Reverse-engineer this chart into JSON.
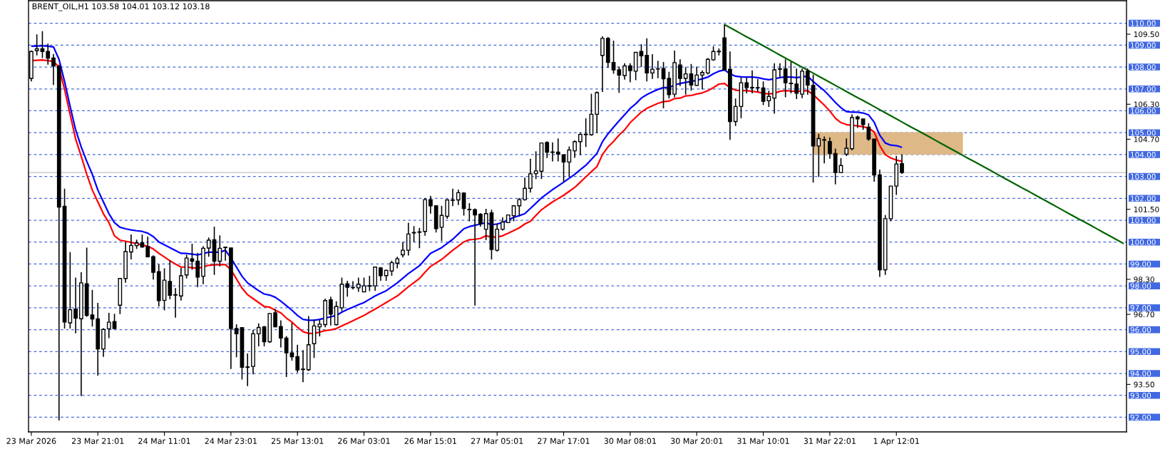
{
  "chart_data": {
    "type": "candlestick",
    "title": "BRENT_OIL,H1 103.58 104.01 103.12 103.18",
    "categories": [
      "23 Mar 2026",
      null,
      null,
      null,
      null,
      null,
      null,
      null,
      null,
      null,
      null,
      null,
      "23 Mar 21:01",
      null,
      null,
      null,
      null,
      null,
      null,
      null,
      null,
      null,
      null,
      null,
      "24 Mar 11:01",
      null,
      null,
      null,
      null,
      null,
      null,
      null,
      null,
      null,
      null,
      null,
      "24 Mar 23:01",
      null,
      null,
      null,
      null,
      null,
      null,
      null,
      null,
      null,
      null,
      null,
      "25 Mar 13:01",
      null,
      null,
      null,
      null,
      null,
      null,
      null,
      null,
      null,
      null,
      null,
      "26 Mar 03:01",
      null,
      null,
      null,
      null,
      null,
      null,
      null,
      null,
      null,
      null,
      null,
      "26 Mar 15:01",
      null,
      null,
      null,
      null,
      null,
      null,
      null,
      null,
      null,
      null,
      null,
      "27 Mar 05:01",
      null,
      null,
      null,
      null,
      null,
      null,
      null,
      null,
      null,
      null,
      null,
      "27 Mar 17:01",
      null,
      null,
      null,
      null,
      null,
      null,
      null,
      null,
      null,
      null,
      null,
      "30 Mar 08:01",
      null,
      null,
      null,
      null,
      null,
      null,
      null,
      null,
      null,
      null,
      null,
      "30 Mar 20:01",
      null,
      null,
      null,
      null,
      null,
      null,
      null,
      null,
      null,
      null,
      null,
      "31 Mar 10:01",
      null,
      null,
      null,
      null,
      null,
      null,
      null,
      null,
      null,
      null,
      null,
      "31 Mar 22:01",
      null,
      null,
      null,
      null,
      null,
      null,
      null,
      null,
      null,
      null,
      null,
      "1 Apr 12:01",
      null,
      null,
      null,
      null,
      null,
      null,
      null,
      null,
      null,
      null,
      null,
      null,
      null,
      null,
      null,
      null,
      null,
      null,
      null,
      null,
      null,
      null,
      null,
      null,
      null,
      null,
      null,
      null,
      null,
      null,
      null,
      null,
      null,
      null,
      null,
      null,
      null,
      null,
      null,
      null,
      null
    ],
    "ohlc": [
      [
        107.48,
        108.75,
        107.34,
        108.71
      ],
      [
        108.75,
        109.49,
        108.53,
        108.83
      ],
      [
        108.83,
        109.64,
        108.41,
        108.71
      ],
      [
        108.71,
        109.07,
        108.11,
        108.41
      ],
      [
        108.41,
        108.6,
        107.18,
        108.05
      ],
      [
        108.03,
        108.11,
        91.85,
        101.6
      ],
      [
        101.64,
        102.44,
        96.05,
        96.35
      ],
      [
        96.31,
        99.54,
        96.05,
        96.91
      ],
      [
        96.94,
        98.38,
        95.83,
        96.53
      ],
      [
        96.5,
        98.62,
        92.97,
        98.14
      ],
      [
        98.1,
        99.75,
        96.59,
        96.65
      ],
      [
        96.67,
        97.82,
        96.14,
        96.49
      ],
      [
        96.49,
        97.22,
        93.9,
        95.12
      ],
      [
        95.12,
        96.07,
        94.76,
        96.01
      ],
      [
        96.04,
        96.77,
        95.61,
        96.34
      ],
      [
        96.37,
        96.73,
        96.03,
        96.05
      ],
      [
        97.12,
        98.36,
        96.71,
        98.34
      ],
      [
        98.34,
        100.01,
        98.14,
        99.57
      ],
      [
        99.55,
        100.35,
        99.21,
        99.85
      ],
      [
        99.84,
        100.11,
        99.69,
        99.96
      ],
      [
        99.97,
        100.35,
        99.75,
        99.78
      ],
      [
        99.81,
        100.25,
        99.3,
        99.33
      ],
      [
        99.33,
        99.4,
        98.29,
        98.62
      ],
      [
        98.65,
        98.98,
        97.06,
        97.33
      ],
      [
        97.34,
        98.8,
        96.88,
        98.26
      ],
      [
        98.2,
        99.18,
        97.39,
        97.57
      ],
      [
        97.6,
        97.9,
        96.55,
        97.58
      ],
      [
        97.54,
        98.82,
        97.33,
        98.46
      ],
      [
        98.5,
        99.42,
        98.34,
        99.27
      ],
      [
        99.24,
        99.93,
        98.74,
        99.13
      ],
      [
        99.13,
        99.51,
        97.94,
        98.4
      ],
      [
        98.44,
        99.81,
        98.08,
        99.72
      ],
      [
        99.73,
        100.21,
        99.33,
        100.09
      ],
      [
        100.11,
        100.71,
        98.5,
        99.13
      ],
      [
        99.13,
        100.31,
        98.89,
        99.72
      ],
      [
        99.75,
        99.79,
        99.15,
        99.77
      ],
      [
        99.73,
        99.75,
        94.2,
        96.05
      ],
      [
        96.05,
        96.25,
        94.74,
        95.81
      ],
      [
        96.09,
        96.11,
        93.72,
        94.28
      ],
      [
        94.3,
        94.91,
        93.42,
        94.28
      ],
      [
        94.32,
        95.99,
        93.96,
        95.81
      ],
      [
        95.81,
        96.29,
        95.24,
        96.1
      ],
      [
        96.13,
        96.17,
        95.24,
        95.45
      ],
      [
        95.45,
        96.77,
        95.39,
        96.74
      ],
      [
        96.77,
        96.94,
        96.11,
        96.13
      ],
      [
        96.14,
        96.43,
        95.19,
        95.62
      ],
      [
        95.61,
        95.71,
        93.84,
        94.94
      ],
      [
        94.94,
        96.31,
        94.59,
        94.76
      ],
      [
        94.77,
        95.31,
        94.04,
        94.16
      ],
      [
        94.18,
        95.07,
        93.6,
        94.2
      ],
      [
        94.17,
        96.62,
        94.11,
        95.31
      ],
      [
        95.36,
        96.47,
        94.71,
        96.17
      ],
      [
        96.13,
        96.47,
        95.69,
        96.25
      ],
      [
        96.23,
        97.42,
        96.11,
        97.33
      ],
      [
        97.36,
        97.51,
        96.19,
        96.71
      ],
      [
        96.23,
        97.3,
        96.19,
        97.06
      ],
      [
        97.0,
        98.38,
        96.85,
        98.08
      ],
      [
        98.1,
        98.23,
        97.51,
        97.94
      ],
      [
        97.93,
        98.22,
        97.84,
        97.92
      ],
      [
        97.91,
        98.38,
        97.73,
        98.08
      ],
      [
        97.73,
        98.38,
        97.71,
        98.0
      ],
      [
        97.99,
        98.46,
        97.76,
        98.01
      ],
      [
        98.0,
        98.86,
        97.78,
        98.86
      ],
      [
        98.82,
        98.86,
        98.23,
        98.47
      ],
      [
        98.47,
        98.75,
        98.23,
        98.71
      ],
      [
        98.68,
        99.15,
        98.46,
        99.06
      ],
      [
        99.04,
        99.33,
        98.8,
        99.24
      ],
      [
        99.42,
        100.01,
        99.3,
        99.63
      ],
      [
        99.63,
        100.89,
        99.39,
        100.37
      ],
      [
        100.42,
        100.73,
        99.99,
        100.44
      ],
      [
        100.45,
        100.65,
        99.72,
        100.47
      ],
      [
        100.49,
        102.02,
        100.29,
        101.94
      ],
      [
        101.94,
        102.12,
        101.3,
        101.66
      ],
      [
        101.66,
        101.66,
        100.44,
        100.62
      ],
      [
        100.68,
        101.66,
        100.05,
        101.22
      ],
      [
        101.18,
        101.96,
        101.07,
        101.93
      ],
      [
        101.91,
        102.44,
        101.64,
        101.93
      ],
      [
        101.93,
        102.4,
        101.69,
        102.26
      ],
      [
        102.24,
        102.28,
        101.21,
        101.54
      ],
      [
        101.5,
        101.78,
        100.95,
        101.48
      ],
      [
        101.48,
        101.54,
        97.1,
        101.24
      ],
      [
        101.27,
        101.33,
        100.71,
        100.83
      ],
      [
        100.59,
        101.52,
        100.09,
        101.3
      ],
      [
        101.34,
        101.48,
        99.21,
        99.66
      ],
      [
        99.63,
        100.83,
        99.57,
        100.59
      ],
      [
        100.59,
        101.13,
        100.53,
        100.92
      ],
      [
        100.89,
        101.24,
        100.89,
        101.24
      ],
      [
        101.21,
        101.69,
        100.95,
        101.66
      ],
      [
        101.66,
        102.02,
        101.18,
        101.94
      ],
      [
        101.94,
        102.95,
        101.9,
        102.46
      ],
      [
        102.46,
        103.81,
        102.26,
        103.12
      ],
      [
        103.13,
        104.15,
        102.88,
        103.25
      ],
      [
        103.24,
        104.53,
        102.88,
        104.53
      ],
      [
        104.55,
        104.61,
        103.84,
        104.11
      ],
      [
        104.12,
        104.56,
        103.69,
        104.1
      ],
      [
        104.11,
        104.74,
        103.69,
        104.03
      ],
      [
        103.99,
        103.99,
        102.76,
        103.66
      ],
      [
        103.66,
        104.37,
        102.98,
        104.21
      ],
      [
        104.17,
        104.65,
        103.85,
        104.59
      ],
      [
        104.59,
        105.01,
        103.97,
        104.92
      ],
      [
        104.91,
        105.66,
        104.35,
        104.93
      ],
      [
        104.91,
        106.78,
        104.86,
        105.84
      ],
      [
        105.84,
        106.89,
        104.98,
        106.83
      ],
      [
        108.53,
        109.4,
        106.86,
        109.31
      ],
      [
        109.31,
        109.37,
        107.96,
        108.21
      ],
      [
        108.21,
        109.21,
        107.69,
        107.87
      ],
      [
        107.87,
        108.02,
        106.82,
        107.63
      ],
      [
        107.61,
        108.17,
        107.42,
        108.05
      ],
      [
        108.05,
        108.17,
        107.3,
        107.84
      ],
      [
        107.81,
        108.67,
        107.4,
        108.67
      ],
      [
        108.71,
        109.04,
        108.0,
        108.51
      ],
      [
        108.53,
        109.31,
        107.34,
        107.73
      ],
      [
        107.73,
        108.59,
        107.46,
        107.9
      ],
      [
        107.91,
        108.29,
        107.49,
        107.92
      ],
      [
        107.93,
        108.23,
        106.11,
        107.46
      ],
      [
        107.48,
        107.78,
        106.56,
        106.74
      ],
      [
        106.76,
        108.75,
        106.62,
        108.2
      ],
      [
        108.09,
        108.35,
        107.13,
        107.48
      ],
      [
        107.48,
        107.99,
        106.74,
        107.69
      ],
      [
        107.69,
        108.14,
        106.92,
        107.18
      ],
      [
        107.16,
        108.02,
        107.13,
        107.63
      ],
      [
        107.63,
        107.85,
        106.98,
        107.75
      ],
      [
        107.73,
        108.41,
        107.66,
        108.35
      ],
      [
        108.33,
        108.95,
        108.29,
        108.71
      ],
      [
        108.7,
        108.85,
        108.53,
        108.72
      ],
      [
        109.33,
        109.95,
        107.84,
        107.87
      ],
      [
        107.9,
        108.71,
        104.67,
        105.51
      ],
      [
        105.51,
        106.56,
        105.31,
        106.2
      ],
      [
        106.2,
        107.52,
        105.66,
        107.28
      ],
      [
        107.28,
        107.52,
        106.8,
        107.06
      ],
      [
        107.07,
        107.85,
        106.8,
        107.05
      ],
      [
        107.06,
        107.46,
        106.86,
        107.05
      ],
      [
        107.04,
        107.34,
        106.26,
        106.44
      ],
      [
        106.46,
        106.92,
        106.18,
        106.66
      ],
      [
        106.58,
        108.17,
        105.87,
        107.87
      ],
      [
        107.9,
        108.17,
        107.52,
        107.92
      ],
      [
        107.91,
        108.35,
        106.62,
        107.28
      ],
      [
        107.26,
        108.23,
        106.8,
        107.24
      ],
      [
        107.22,
        107.93,
        106.54,
        106.8
      ],
      [
        106.76,
        107.93,
        106.58,
        107.81
      ],
      [
        107.81,
        107.93,
        106.74,
        107.18
      ],
      [
        107.16,
        107.66,
        102.72,
        104.39
      ],
      [
        104.39,
        104.95,
        102.98,
        104.73
      ],
      [
        104.66,
        104.83,
        103.6,
        104.68
      ],
      [
        104.59,
        104.79,
        103.81,
        104.05
      ],
      [
        104.05,
        104.27,
        102.64,
        103.18
      ],
      [
        103.18,
        103.84,
        103.16,
        103.5
      ],
      [
        104.02,
        104.74,
        103.93,
        104.29
      ],
      [
        104.27,
        105.84,
        104.19,
        105.69
      ],
      [
        105.72,
        105.78,
        105.22,
        105.63
      ],
      [
        105.63,
        105.63,
        105.13,
        105.37
      ],
      [
        105.25,
        105.43,
        104.63,
        104.71
      ],
      [
        104.71,
        104.71,
        102.76,
        103.07
      ],
      [
        103.07,
        103.31,
        98.41,
        98.74
      ],
      [
        98.74,
        101.24,
        98.5,
        101.07
      ],
      [
        101.07,
        102.56,
        100.95,
        102.56
      ],
      [
        102.56,
        103.93,
        102.16,
        103.57
      ],
      [
        103.58,
        104.01,
        103.12,
        103.18
      ],
      null,
      null,
      null,
      null,
      null,
      null,
      null,
      null,
      null,
      null,
      null,
      null,
      null,
      null,
      null,
      null,
      null,
      null,
      null,
      null,
      null,
      null,
      null,
      null,
      null,
      null,
      null,
      null,
      null,
      null,
      null,
      null,
      null,
      null,
      null,
      null,
      null,
      null,
      null,
      null
    ],
    "series": [
      {
        "type": "line",
        "color": "#deb887",
        "values": [
          null,
          null,
          null,
          null,
          null,
          null,
          null,
          null,
          null,
          null,
          null,
          null,
          null,
          null,
          null,
          null,
          null,
          null,
          null,
          null,
          null,
          null,
          null,
          null,
          null,
          null,
          null,
          null,
          null,
          null,
          null,
          null,
          null,
          null,
          null,
          null,
          null,
          null,
          null,
          null,
          null,
          null,
          null,
          null,
          null,
          null,
          null,
          null,
          null,
          null,
          null,
          null,
          null,
          null,
          null,
          null,
          null,
          null,
          null,
          null,
          null,
          null,
          null,
          null,
          null,
          null,
          null,
          null,
          null,
          null,
          null,
          null,
          null,
          null,
          null,
          null,
          null,
          null,
          null,
          null,
          null,
          null,
          null,
          null,
          null,
          null,
          null,
          null,
          null,
          null,
          null,
          null,
          null,
          null,
          null,
          null,
          null,
          null,
          null,
          null,
          null,
          null,
          null,
          null,
          null,
          null,
          null,
          null,
          null,
          null,
          null,
          null,
          null,
          null,
          null,
          null,
          null,
          null,
          null,
          null,
          null,
          null,
          null,
          null,
          null,
          null,
          null,
          null,
          null,
          null,
          null,
          null,
          null,
          null,
          null,
          null,
          null,
          null,
          null,
          null,
          null,
          105.0,
          105.0,
          105.0,
          105.0,
          105.0,
          105.0,
          105.0,
          105.0,
          105.0,
          105.0,
          105.0,
          105.0,
          105.0,
          105.0,
          105.0,
          105.0,
          105.0,
          105.0,
          105.0,
          105.0,
          105.0,
          105.0,
          105.0,
          105.0,
          105.0,
          105.0,
          105.0,
          105.0,
          null,
          null,
          null,
          null,
          null,
          null,
          null,
          null,
          null,
          null,
          null,
          null,
          null,
          null,
          null,
          null,
          null,
          null,
          null,
          null,
          null,
          null,
          null,
          null,
          null,
          null,
          null,
          null,
          null
        ],
        "upper": [
          null,
          null,
          null,
          null,
          null,
          null,
          null,
          null,
          null,
          null,
          null,
          null,
          null,
          null,
          null,
          null,
          null,
          null,
          null,
          null,
          null,
          null,
          null,
          null,
          null,
          null,
          null,
          null,
          null,
          null,
          null,
          null,
          null,
          null,
          null,
          null,
          null,
          null,
          null,
          null,
          null,
          null,
          null,
          null,
          null,
          null,
          null,
          null,
          null,
          null,
          null,
          null,
          null,
          null,
          null,
          null,
          null,
          null,
          null,
          null,
          null,
          null,
          null,
          null,
          null,
          null,
          null,
          null,
          null,
          null,
          null,
          null,
          null,
          null,
          null,
          null,
          null,
          null,
          null,
          null,
          null,
          null,
          null,
          null,
          null,
          null,
          null,
          null,
          null,
          null,
          null,
          null,
          null,
          null,
          null,
          null,
          null,
          null,
          null,
          null,
          null,
          null,
          null,
          null,
          null,
          null,
          null,
          null,
          null,
          null,
          null,
          null,
          null,
          null,
          null,
          null,
          null,
          null,
          null,
          null,
          null,
          null,
          null,
          null,
          null,
          null,
          null,
          null,
          null,
          null,
          null,
          null,
          null,
          null,
          null,
          null,
          null,
          null,
          null,
          null,
          null,
          105.0,
          105.0,
          105.0,
          105.0,
          105.0,
          105.0,
          105.0,
          105.0,
          105.0,
          105.0,
          105.0,
          105.0,
          105.0,
          105.0,
          105.0,
          105.0,
          105.0,
          105.0,
          105.0,
          105.0,
          105.0,
          105.0,
          105.0,
          105.0,
          105.0,
          105.0,
          105.0,
          105.0,
          null,
          null,
          null,
          null,
          null,
          null,
          null,
          null,
          null,
          null,
          null,
          null,
          null,
          null,
          null,
          null,
          null,
          null,
          null,
          null,
          null,
          null,
          null,
          null,
          null,
          null,
          null,
          null,
          null
        ],
        "lower": [
          null,
          null,
          null,
          null,
          null,
          null,
          null,
          null,
          null,
          null,
          null,
          null,
          null,
          null,
          null,
          null,
          null,
          null,
          null,
          null,
          null,
          null,
          null,
          null,
          null,
          null,
          null,
          null,
          null,
          null,
          null,
          null,
          null,
          null,
          null,
          null,
          null,
          null,
          null,
          null,
          null,
          null,
          null,
          null,
          null,
          null,
          null,
          null,
          null,
          null,
          null,
          null,
          null,
          null,
          null,
          null,
          null,
          null,
          null,
          null,
          null,
          null,
          null,
          null,
          null,
          null,
          null,
          null,
          null,
          null,
          null,
          null,
          null,
          null,
          null,
          null,
          null,
          null,
          null,
          null,
          null,
          null,
          null,
          null,
          null,
          null,
          null,
          null,
          null,
          null,
          null,
          null,
          null,
          null,
          null,
          null,
          null,
          null,
          null,
          null,
          null,
          null,
          null,
          null,
          null,
          null,
          null,
          null,
          null,
          null,
          null,
          null,
          null,
          null,
          null,
          null,
          null,
          null,
          null,
          null,
          null,
          null,
          null,
          null,
          null,
          null,
          null,
          null,
          null,
          null,
          null,
          null,
          null,
          null,
          null,
          null,
          null,
          null,
          null,
          null,
          null,
          104.0,
          104.0,
          104.0,
          104.0,
          104.0,
          104.0,
          104.0,
          104.0,
          104.0,
          104.0,
          104.0,
          104.0,
          104.0,
          104.0,
          104.0,
          104.0,
          104.0,
          104.0,
          104.0,
          104.0,
          104.0,
          104.0,
          104.0,
          104.0,
          104.0,
          104.0,
          104.0,
          104.0,
          null,
          null,
          null,
          null,
          null,
          null,
          null,
          null,
          null,
          null,
          null,
          null,
          null,
          null,
          null,
          null,
          null,
          null,
          null,
          null,
          null,
          null,
          null,
          null,
          null,
          null,
          null,
          null,
          null
        ]
      },
      {
        "type": "line",
        "color": "#0000ff",
        "values": [
          108.95,
          108.96,
          108.97,
          108.95,
          108.92,
          108.35,
          107.34,
          106.2,
          105.13,
          104.35,
          103.69,
          103.1,
          102.38,
          101.84,
          101.3,
          100.89,
          100.68,
          100.61,
          100.56,
          100.52,
          100.49,
          100.41,
          100.25,
          100.01,
          99.88,
          99.75,
          99.62,
          99.49,
          99.48,
          99.45,
          99.42,
          99.48,
          99.54,
          99.54,
          99.54,
          99.63,
          99.27,
          98.86,
          98.44,
          98.14,
          97.96,
          97.78,
          97.63,
          97.58,
          97.48,
          97.3,
          97.1,
          96.89,
          96.65,
          96.47,
          96.43,
          96.43,
          96.47,
          96.53,
          96.59,
          96.65,
          96.8,
          96.92,
          97.03,
          97.14,
          97.24,
          97.39,
          97.54,
          97.66,
          97.78,
          97.96,
          98.14,
          98.35,
          98.56,
          98.74,
          98.92,
          99.21,
          99.49,
          99.62,
          99.75,
          99.94,
          100.13,
          100.37,
          100.61,
          100.71,
          100.77,
          100.83,
          100.89,
          100.79,
          100.83,
          100.89,
          101.01,
          101.13,
          101.21,
          101.3,
          101.54,
          101.78,
          102.02,
          102.21,
          102.4,
          102.57,
          102.74,
          102.92,
          103.1,
          103.31,
          103.51,
          103.78,
          104.05,
          104.59,
          104.95,
          105.25,
          105.54,
          105.82,
          106.11,
          106.32,
          106.58,
          106.74,
          106.86,
          106.98,
          107.06,
          107.06,
          107.18,
          107.25,
          107.3,
          107.34,
          107.4,
          107.46,
          107.54,
          107.69,
          107.81,
          107.87,
          107.69,
          107.58,
          107.55,
          107.54,
          107.54,
          107.52,
          107.46,
          107.42,
          107.46,
          107.52,
          107.55,
          107.54,
          107.52,
          107.55,
          107.58,
          107.34,
          107.13,
          106.92,
          106.66,
          106.38,
          106.14,
          105.96,
          105.94,
          105.94,
          105.9,
          105.81,
          105.48,
          104.89,
          104.53,
          104.43,
          104.41,
          104.33,
          null,
          null,
          null,
          null,
          null,
          null,
          null,
          null,
          null,
          null,
          null,
          null,
          null,
          null,
          null,
          null,
          null,
          null,
          null,
          null,
          null,
          null,
          null,
          null,
          null,
          null,
          null,
          null,
          null,
          null,
          null,
          null,
          null,
          null,
          null,
          null,
          null,
          null,
          null,
          null
        ]
      },
      {
        "type": "line",
        "color": "#ff0000",
        "values": [
          108.29,
          108.31,
          108.32,
          108.29,
          108.26,
          107.99,
          106.98,
          105.84,
          104.71,
          103.93,
          103.1,
          102.38,
          101.84,
          101.3,
          100.89,
          100.29,
          100.09,
          100.04,
          99.99,
          99.93,
          99.87,
          99.81,
          99.69,
          99.49,
          99.32,
          99.15,
          99.0,
          98.86,
          98.86,
          98.83,
          98.8,
          98.87,
          98.94,
          98.96,
          98.97,
          98.97,
          98.74,
          98.32,
          97.9,
          97.6,
          97.42,
          97.24,
          97.06,
          97.03,
          96.89,
          96.77,
          96.53,
          96.35,
          96.11,
          95.91,
          95.83,
          95.83,
          95.89,
          95.96,
          95.99,
          96.05,
          96.17,
          96.29,
          96.41,
          96.53,
          96.65,
          96.8,
          96.94,
          97.09,
          97.24,
          97.39,
          97.54,
          97.75,
          97.96,
          98.15,
          98.34,
          98.62,
          98.89,
          99.05,
          99.21,
          99.42,
          99.63,
          99.82,
          100.01,
          100.11,
          100.13,
          100.17,
          100.29,
          100.23,
          100.23,
          100.29,
          100.41,
          100.53,
          100.65,
          100.83,
          100.95,
          101.22,
          101.48,
          101.66,
          101.84,
          101.99,
          102.14,
          102.32,
          102.5,
          102.74,
          102.98,
          103.22,
          103.45,
          104.0,
          104.35,
          104.6,
          104.89,
          105.13,
          105.46,
          105.7,
          105.94,
          106.11,
          106.23,
          106.34,
          106.42,
          106.44,
          106.56,
          106.58,
          106.68,
          106.7,
          106.77,
          106.82,
          106.92,
          107.06,
          107.22,
          107.25,
          107.06,
          106.94,
          106.92,
          106.92,
          106.89,
          106.86,
          106.8,
          106.77,
          106.8,
          106.89,
          106.92,
          106.9,
          106.89,
          106.9,
          106.92,
          106.74,
          106.5,
          106.26,
          105.99,
          105.66,
          105.46,
          105.37,
          105.34,
          105.31,
          105.27,
          105.21,
          105.03,
          104.41,
          104.0,
          103.84,
          103.75,
          103.69,
          null,
          null,
          null,
          null,
          null,
          null,
          null,
          null,
          null,
          null,
          null,
          null,
          null,
          null,
          null,
          null,
          null,
          null,
          null,
          null,
          null,
          null,
          null,
          null,
          null,
          null,
          null,
          null,
          null,
          null,
          null,
          null,
          null,
          null,
          null,
          null,
          null,
          null,
          null,
          null
        ]
      },
      {
        "type": "line",
        "color": "#006400",
        "values": [
          null,
          null,
          null,
          null,
          null,
          null,
          null,
          null,
          null,
          null,
          null,
          null,
          null,
          null,
          null,
          null,
          null,
          null,
          null,
          null,
          null,
          null,
          null,
          null,
          null,
          null,
          null,
          null,
          null,
          null,
          null,
          null,
          null,
          null,
          null,
          null,
          null,
          null,
          null,
          null,
          null,
          null,
          null,
          null,
          null,
          null,
          null,
          null,
          null,
          null,
          null,
          null,
          null,
          null,
          null,
          null,
          null,
          null,
          null,
          null,
          null,
          null,
          null,
          null,
          null,
          null,
          null,
          null,
          null,
          null,
          null,
          null,
          null,
          null,
          null,
          null,
          null,
          null,
          null,
          null,
          null,
          null,
          null,
          null,
          null,
          null,
          null,
          null,
          null,
          null,
          null,
          null,
          null,
          null,
          null,
          null,
          null,
          null,
          null,
          null,
          null,
          null,
          null,
          null,
          null,
          null,
          null,
          null,
          null,
          null,
          null,
          null,
          null,
          null,
          null,
          null,
          null,
          null,
          null,
          null,
          null,
          null,
          null,
          null,
          null,
          109.94,
          109.8,
          109.66,
          109.52,
          109.38,
          109.25,
          109.11,
          108.97,
          108.83,
          108.69,
          108.55,
          108.41,
          108.27,
          108.13,
          107.99,
          107.86,
          107.72,
          107.58,
          107.44,
          107.3,
          107.16,
          107.02,
          106.88,
          106.74,
          106.6,
          106.47,
          106.33,
          106.19,
          106.05,
          105.91,
          105.77,
          105.63,
          105.49,
          105.35,
          105.21,
          105.08,
          104.94,
          104.8,
          104.66,
          104.52,
          104.38,
          104.24,
          104.1,
          103.96,
          103.82,
          103.69,
          103.55,
          103.41,
          103.27,
          103.13,
          102.99,
          102.85,
          102.71,
          102.57,
          102.43,
          102.3,
          102.16,
          102.02,
          101.88,
          101.74,
          101.6,
          101.46,
          101.32,
          101.18,
          101.04,
          100.91,
          100.77,
          100.63,
          100.49,
          100.35,
          100.21,
          100.07,
          99.93
        ]
      }
    ],
    "ylim": [
      91.33,
      111.03
    ],
    "yticks": [
      {
        "value": 109.5,
        "label": "109.50"
      },
      {
        "value": 106.3,
        "label": "106.30"
      },
      {
        "value": 104.7,
        "label": "104.70"
      },
      {
        "value": 101.5,
        "label": "101.50"
      },
      {
        "value": 98.3,
        "label": "98.30"
      },
      {
        "value": 96.7,
        "label": "96.70"
      },
      {
        "value": 93.5,
        "label": "93.50"
      }
    ],
    "ref_lines": [
      {
        "axis": "y",
        "value": 110,
        "label": "110.00",
        "color": "#4169e1",
        "line_style": "dashed"
      },
      {
        "axis": "y",
        "value": 109,
        "label": "109.00",
        "color": "#4169e1",
        "line_style": "dashed"
      },
      {
        "axis": "y",
        "value": 108,
        "label": "108.00",
        "color": "#4169e1",
        "line_style": "dashed"
      },
      {
        "axis": "y",
        "value": 107,
        "label": "107.00",
        "color": "#4169e1",
        "line_style": "dashed"
      },
      {
        "axis": "y",
        "value": 106,
        "label": "106.00",
        "color": "#4169e1",
        "line_style": "dashed"
      },
      {
        "axis": "y",
        "value": 105,
        "label": "105.00",
        "color": "#4169e1",
        "line_style": "dashed"
      },
      {
        "axis": "y",
        "value": 104,
        "label": "104.00",
        "color": "#4169e1",
        "line_style": "dashed"
      },
      {
        "axis": "y",
        "value": 103,
        "label": "103.00",
        "color": "#4169e1",
        "line_style": "dashed"
      },
      {
        "axis": "y",
        "value": 102,
        "label": "102.00",
        "color": "#4169e1",
        "line_style": "dashed"
      },
      {
        "axis": "y",
        "value": 101,
        "label": "101.00",
        "color": "#4169e1",
        "line_style": "dashed"
      },
      {
        "axis": "y",
        "value": 100,
        "label": "100.00",
        "color": "#4169e1",
        "line_style": "dashed"
      },
      {
        "axis": "y",
        "value": 99,
        "label": "99.00",
        "color": "#4169e1",
        "line_style": "dashed"
      },
      {
        "axis": "y",
        "value": 98,
        "label": "98.00",
        "color": "#4169e1",
        "line_style": "dashed"
      },
      {
        "axis": "y",
        "value": 97,
        "label": "97.00",
        "color": "#4169e1",
        "line_style": "dashed"
      },
      {
        "axis": "y",
        "value": 96,
        "label": "96.00",
        "color": "#4169e1",
        "line_style": "dashed"
      },
      {
        "axis": "y",
        "value": 95,
        "label": "95.00",
        "color": "#4169e1",
        "line_style": "dashed"
      },
      {
        "axis": "y",
        "value": 94,
        "label": "94.00",
        "color": "#4169e1",
        "line_style": "dashed"
      },
      {
        "axis": "y",
        "value": 93,
        "label": "93.00",
        "color": "#4169e1",
        "line_style": "dashed"
      },
      {
        "axis": "y",
        "value": 92,
        "label": "92.00",
        "color": "#4169e1",
        "line_style": "dashed"
      },
      {
        "axis": "y",
        "value": 103.18,
        "color": "#c0c0c0",
        "line_style": "solid"
      }
    ]
  }
}
